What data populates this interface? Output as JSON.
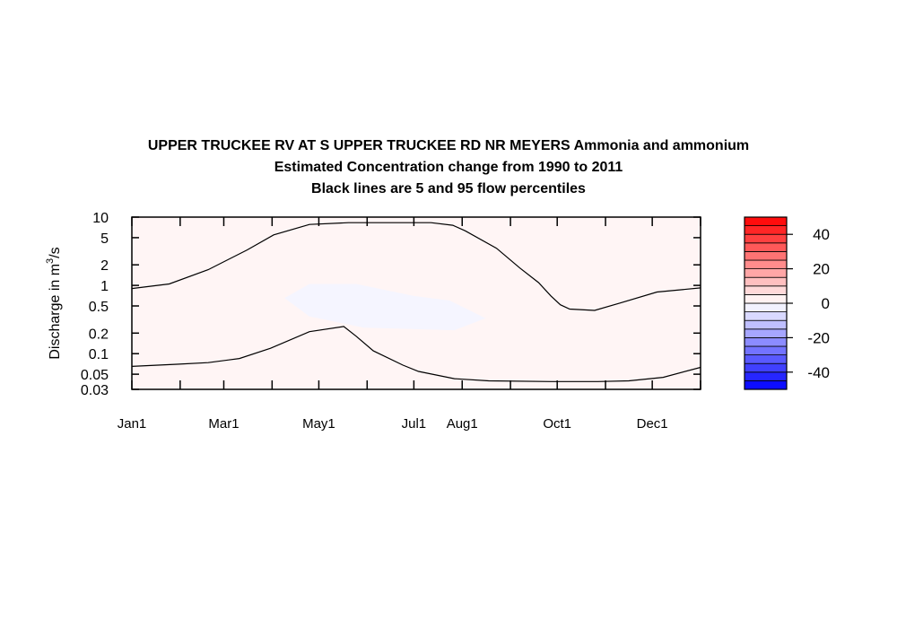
{
  "chart_data": {
    "type": "heatmap",
    "title": "UPPER TRUCKEE RV AT S UPPER TRUCKEE RD NR MEYERS  Ammonia and ammonium",
    "subtitle": "Estimated Concentration change from 1990 to 2011",
    "subtitle2": "Black lines are 5 and 95 flow percentiles",
    "ylabel_prefix": "Discharge in m",
    "ylabel_sup": "3",
    "ylabel_suffix": "/s",
    "x_scale": "day-of-year",
    "xlim_days": [
      1,
      366
    ],
    "x_ticks": [
      {
        "label": "Jan1",
        "day": 1
      },
      {
        "label": "Mar1",
        "day": 60
      },
      {
        "label": "May1",
        "day": 121
      },
      {
        "label": "Jul1",
        "day": 182
      },
      {
        "label": "Aug1",
        "day": 213
      },
      {
        "label": "Oct1",
        "day": 274
      },
      {
        "label": "Dec1",
        "day": 335
      }
    ],
    "y_scale": "log",
    "ylim": [
      0.03,
      10
    ],
    "y_ticks": [
      "10",
      "5",
      "2",
      "1",
      "0.5",
      "0.2",
      "0.1",
      "0.05",
      "0.03"
    ],
    "background_change": 2,
    "negative_region": {
      "value": -2,
      "outline": [
        [
          99,
          0.65
        ],
        [
          115,
          1.05
        ],
        [
          145,
          1.05
        ],
        [
          182,
          0.7
        ],
        [
          205,
          0.6
        ],
        [
          228,
          0.33
        ],
        [
          208,
          0.22
        ],
        [
          150,
          0.24
        ],
        [
          115,
          0.35
        ]
      ]
    },
    "lines": [
      {
        "label": "95 percentile",
        "points": [
          [
            1,
            0.9
          ],
          [
            25,
            1.05
          ],
          [
            50,
            1.7
          ],
          [
            75,
            3.3
          ],
          [
            92,
            5.5
          ],
          [
            115,
            7.8
          ],
          [
            140,
            8.3
          ],
          [
            170,
            8.3
          ],
          [
            193,
            8.3
          ],
          [
            207,
            7.6
          ],
          [
            215,
            6.3
          ],
          [
            235,
            3.5
          ],
          [
            250,
            1.8
          ],
          [
            262,
            1.1
          ],
          [
            270,
            0.7
          ],
          [
            276,
            0.52
          ],
          [
            282,
            0.45
          ],
          [
            298,
            0.43
          ],
          [
            314,
            0.55
          ],
          [
            338,
            0.8
          ],
          [
            366,
            0.92
          ]
        ]
      },
      {
        "label": "5 percentile",
        "points": [
          [
            1,
            0.065
          ],
          [
            30,
            0.07
          ],
          [
            50,
            0.074
          ],
          [
            70,
            0.085
          ],
          [
            90,
            0.12
          ],
          [
            115,
            0.21
          ],
          [
            137,
            0.25
          ],
          [
            145,
            0.18
          ],
          [
            156,
            0.11
          ],
          [
            175,
            0.068
          ],
          [
            185,
            0.055
          ],
          [
            208,
            0.043
          ],
          [
            230,
            0.04
          ],
          [
            270,
            0.039
          ],
          [
            300,
            0.039
          ],
          [
            320,
            0.04
          ],
          [
            342,
            0.045
          ],
          [
            366,
            0.063
          ]
        ]
      }
    ],
    "colorbar": {
      "range": [
        -50,
        50
      ],
      "step": 5,
      "tick_labels": [
        40,
        20,
        0,
        -20,
        -40
      ],
      "negative_color": "#0000ff",
      "positive_color": "#ff0000",
      "neutral_color": "#ffffff"
    }
  }
}
